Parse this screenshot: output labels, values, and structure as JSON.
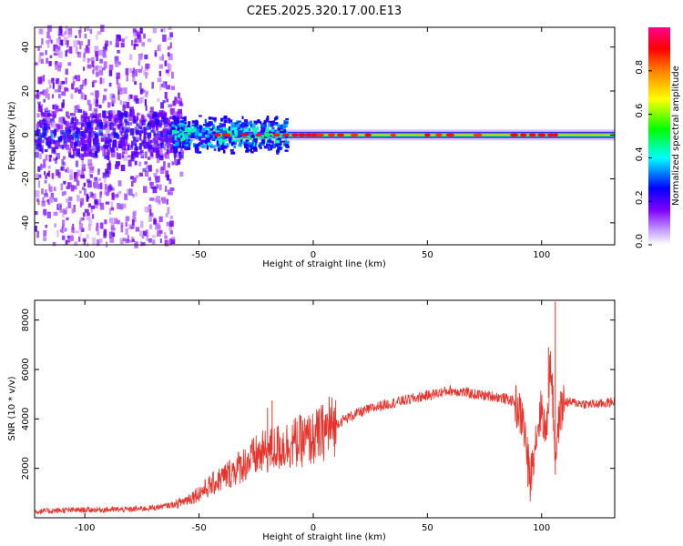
{
  "title": "C2E5.2025.320.17.00.E13",
  "colors": {
    "line": "#e8332b",
    "axis": "#000000",
    "background": "#ffffff"
  },
  "chart_data": [
    {
      "type": "heatmap",
      "name": "spectrogram",
      "xlabel": "Height of straight line (km)",
      "ylabel": "Frequency (Hz)",
      "xlim": [
        -122,
        132
      ],
      "ylim": [
        -50,
        49
      ],
      "xticks": [
        -100,
        -50,
        0,
        50,
        100
      ],
      "xtick_labels": [
        "-100",
        "-50",
        "0",
        "50",
        "100"
      ],
      "yticks": [
        -40,
        -20,
        0,
        20,
        40
      ],
      "ytick_labels": [
        "-40",
        "-20",
        "0",
        "20",
        "40"
      ],
      "colorbar": {
        "label": "Normalized spectral amplitude",
        "range": [
          0,
          1
        ],
        "ticks": [
          0.0,
          0.2,
          0.4,
          0.6,
          0.8
        ],
        "tick_labels": [
          "0.0",
          "0.2",
          "0.4",
          "0.6",
          "0.8"
        ],
        "colormap": [
          "#ffffff",
          "#8000ff",
          "#0000ff",
          "#00ffff",
          "#00ff00",
          "#ffff00",
          "#ff8000",
          "#ff0000",
          "#ff00a0"
        ]
      },
      "description_values": {
        "center_frequency_hz": 0,
        "noise_region_km": [
          -122,
          -60
        ],
        "strong_band_km": [
          -60,
          132
        ]
      }
    },
    {
      "type": "line",
      "name": "snr",
      "xlabel": "Height of straight line (km)",
      "ylabel": "SNR (10 * v/v)",
      "xlim": [
        -122,
        132
      ],
      "ylim": [
        0,
        8800
      ],
      "xticks": [
        -100,
        -50,
        0,
        50,
        100
      ],
      "xtick_labels": [
        "-100",
        "-50",
        "0",
        "50",
        "100"
      ],
      "yticks": [
        2000,
        4000,
        6000,
        8000
      ],
      "ytick_labels": [
        "2000",
        "4000",
        "6000",
        "8000"
      ],
      "series": [
        {
          "name": "SNR",
          "x": [
            -122,
            -110,
            -100,
            -90,
            -80,
            -70,
            -60,
            -55,
            -50,
            -45,
            -40,
            -35,
            -30,
            -25,
            -20,
            -15,
            -10,
            -5,
            0,
            5,
            10,
            15,
            20,
            25,
            30,
            35,
            40,
            45,
            50,
            55,
            60,
            65,
            70,
            75,
            80,
            85,
            88,
            92,
            94,
            95,
            97,
            100,
            102,
            104,
            106,
            108,
            110,
            115,
            120,
            125,
            132
          ],
          "y": [
            250,
            300,
            320,
            330,
            340,
            400,
            550,
            750,
            1000,
            1300,
            1600,
            1900,
            2200,
            2500,
            2700,
            2850,
            3000,
            3100,
            3200,
            3500,
            3800,
            4050,
            4250,
            4400,
            4550,
            4650,
            4750,
            4850,
            4950,
            5050,
            5150,
            5100,
            5000,
            4950,
            4900,
            4800,
            4700,
            3900,
            2300,
            1500,
            3000,
            4500,
            3200,
            6500,
            2500,
            4200,
            4700,
            4650,
            4600,
            4600,
            4700
          ]
        }
      ],
      "spikes": [
        {
          "x": -18,
          "y": 4750
        },
        {
          "x": -20,
          "y": 4450
        },
        {
          "x": 7,
          "y": 4900
        },
        {
          "x": 103,
          "y": 6900
        },
        {
          "x": 106,
          "y": 8750
        },
        {
          "x": 94,
          "y": 1250
        },
        {
          "x": 106,
          "y": 1750
        }
      ]
    }
  ]
}
